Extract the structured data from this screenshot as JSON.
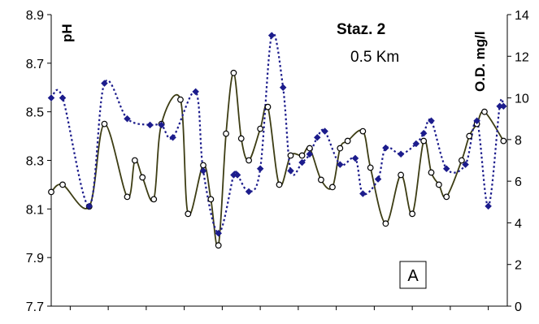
{
  "chart_data": {
    "type": "line",
    "title": "Staz. 2",
    "subtitle": "0.5 Km",
    "panel_label": "A",
    "ylabel_left": "pH",
    "ylabel_right": "O.D. mg/l",
    "ylim_left": [
      7.7,
      8.9
    ],
    "ylim_right": [
      0,
      14
    ],
    "yticks_left": [
      "7.7",
      "7.9",
      "8.1",
      "8.3",
      "8.5",
      "8.7",
      "8.9"
    ],
    "yticks_right": [
      "0",
      "2",
      "4",
      "6",
      "8",
      "10",
      "12",
      "14"
    ],
    "x_range": [
      0,
      60
    ],
    "x_tick_count": 12,
    "grid": false,
    "series": [
      {
        "axis": "left",
        "color": "#3d3d14",
        "marker": "open-circle",
        "line": "solid",
        "x": [
          0,
          1.5,
          5,
          7,
          10,
          11,
          12,
          13.5,
          14.5,
          17,
          18,
          20,
          21,
          22,
          23,
          24,
          25,
          26,
          27.5,
          28.5,
          30,
          31.5,
          33,
          34,
          35.5,
          37,
          38,
          39,
          41,
          42,
          44,
          46,
          47.5,
          49,
          50,
          51,
          52,
          54,
          55,
          56,
          57,
          59.5
        ],
        "y": [
          8.17,
          8.2,
          8.11,
          8.45,
          8.15,
          8.3,
          8.23,
          8.14,
          8.45,
          8.55,
          8.08,
          8.28,
          8.14,
          7.95,
          8.41,
          8.66,
          8.39,
          8.3,
          8.43,
          8.52,
          8.2,
          8.32,
          8.32,
          8.35,
          8.22,
          8.19,
          8.35,
          8.38,
          8.42,
          8.27,
          8.04,
          8.24,
          8.08,
          8.38,
          8.25,
          8.2,
          8.15,
          8.3,
          8.4,
          8.45,
          8.5,
          8.38
        ]
      },
      {
        "axis": "right",
        "color": "#1c1c8c",
        "marker": "diamond",
        "line": "dotted",
        "x": [
          0,
          1.5,
          5,
          7,
          10,
          13,
          14.5,
          16,
          19,
          20,
          22,
          24,
          24.5,
          26,
          27.5,
          29,
          30.5,
          31.5,
          33,
          34,
          35,
          36,
          38,
          40,
          41,
          43,
          44,
          46,
          48,
          49,
          50,
          52,
          54.5,
          56,
          57.5,
          59,
          59.5
        ],
        "y": [
          10,
          10,
          4.8,
          10.7,
          9,
          8.7,
          8.7,
          8.1,
          10.3,
          6.5,
          3.5,
          6.3,
          6.3,
          5.5,
          6.6,
          13,
          10.5,
          6.5,
          6.9,
          7.3,
          8.1,
          8.4,
          6.8,
          7.1,
          5.4,
          6.1,
          7.6,
          7.3,
          7.8,
          8.3,
          8.9,
          6.6,
          6.8,
          8.9,
          4.8,
          9.6,
          9.6
        ]
      }
    ]
  }
}
